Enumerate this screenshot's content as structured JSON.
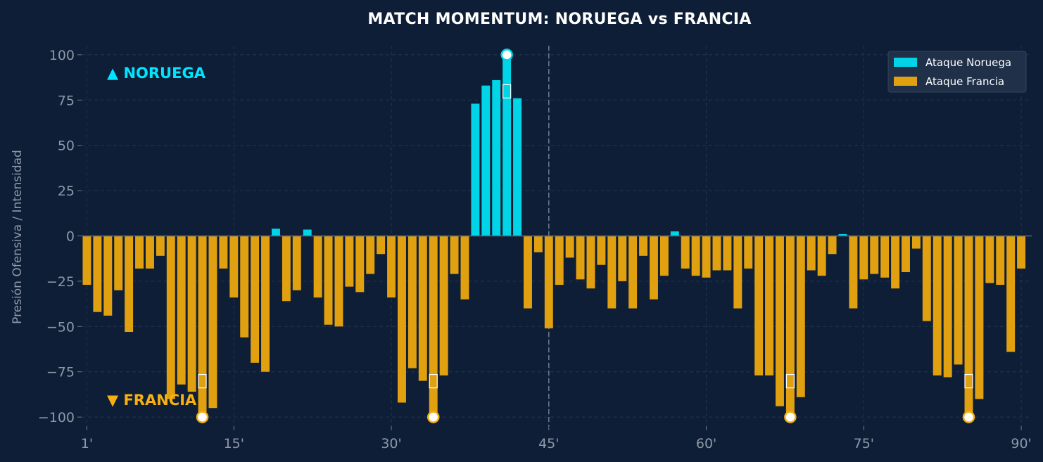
{
  "chart_data": {
    "type": "bar",
    "title": "MATCH MOMENTUM: NORUEGA vs FRANCIA",
    "ylabel": "Presión Ofensiva / Intensidad",
    "xlabel": "",
    "xlim": [
      0.5,
      91
    ],
    "ylim": [
      -105,
      105
    ],
    "yticks": [
      100,
      75,
      50,
      25,
      0,
      -25,
      -50,
      -75,
      -100
    ],
    "ytick_labels": [
      "100",
      "75",
      "50",
      "25",
      "0",
      "−25",
      "−50",
      "−75",
      "−100"
    ],
    "xticks": [
      1,
      15,
      30,
      45,
      60,
      75,
      90
    ],
    "xtick_labels": [
      "1'",
      "15'",
      "30'",
      "45'",
      "60'",
      "75'",
      "90'"
    ],
    "halftime_minute": 45,
    "grid": true,
    "legend_position": "top-right",
    "team_labels": {
      "top": "▲ NORUEGA",
      "bottom": "▼ FRANCIA"
    },
    "colors": {
      "background": "#0e1e36",
      "norway": "#00d4e6",
      "france": "#e0a010",
      "grid": "#22344f",
      "goal_marker_norway": "#00d4e6",
      "goal_marker_france": "#f5b014"
    },
    "series": [
      {
        "name": "Ataque Noruega",
        "color": "#00d4e6",
        "x": [
          19,
          22,
          38,
          39,
          40,
          41,
          42,
          57,
          73
        ],
        "values": [
          4,
          3.5,
          73,
          83,
          86,
          100,
          76,
          2.5,
          1
        ]
      },
      {
        "name": "Ataque Francia",
        "color": "#e0a010",
        "x": [
          1,
          2,
          3,
          4,
          5,
          6,
          7,
          8,
          9,
          10,
          11,
          12,
          13,
          14,
          15,
          16,
          17,
          18,
          20,
          21,
          23,
          24,
          25,
          26,
          27,
          28,
          29,
          30,
          31,
          32,
          33,
          34,
          35,
          36,
          37,
          43,
          44,
          45,
          46,
          47,
          48,
          49,
          50,
          51,
          52,
          53,
          54,
          55,
          56,
          58,
          59,
          60,
          61,
          62,
          63,
          64,
          65,
          66,
          67,
          68,
          69,
          70,
          71,
          72,
          74,
          75,
          76,
          77,
          78,
          79,
          80,
          81,
          82,
          83,
          84,
          85,
          86,
          87,
          88,
          89,
          90
        ],
        "values": [
          -27,
          -42,
          -44,
          -30,
          -53,
          -18,
          -18,
          -11,
          -90,
          -82,
          -86,
          -100,
          -95,
          -18,
          -34,
          -56,
          -70,
          -75,
          -36,
          -30,
          -34,
          -49,
          -50,
          -28,
          -31,
          -21,
          -10,
          -34,
          -92,
          -73,
          -80,
          -100,
          -77,
          -21,
          -35,
          -40,
          -9,
          -51,
          -27,
          -12,
          -24,
          -29,
          -16,
          -40,
          -25,
          -40,
          -11,
          -35,
          -22,
          -18,
          -22,
          -23,
          -19,
          -19,
          -40,
          -18,
          -77,
          -77,
          -94,
          -100,
          -89,
          -19,
          -22,
          -10,
          -40,
          -24,
          -21,
          -23,
          -29,
          -20,
          -7,
          -47,
          -77,
          -78,
          -71,
          -100,
          -90,
          -26,
          -27,
          -64,
          -18
        ]
      }
    ],
    "goals": [
      {
        "minute": 12,
        "team": "Francia",
        "value": -100
      },
      {
        "minute": 34,
        "team": "Francia",
        "value": -100
      },
      {
        "minute": 41,
        "team": "Noruega",
        "value": 100
      },
      {
        "minute": 68,
        "team": "Francia",
        "value": -100
      },
      {
        "minute": 85,
        "team": "Francia",
        "value": -100
      }
    ],
    "goal_glyph": "soccer-ball-icon"
  }
}
